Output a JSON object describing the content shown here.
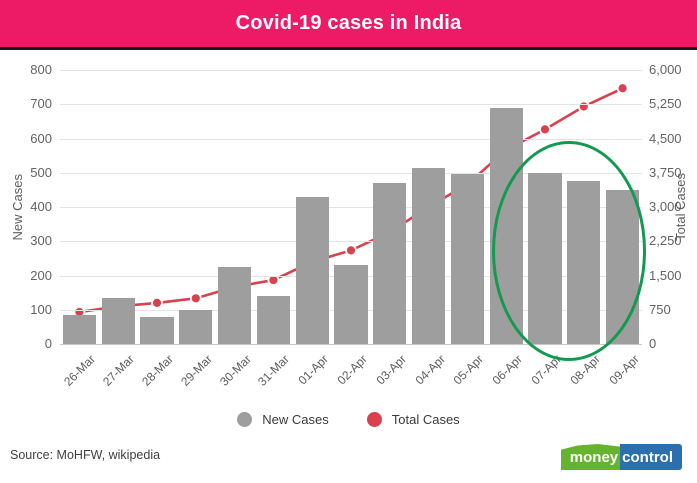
{
  "header": {
    "title": "Covid-19 cases in India",
    "bg_color": "#ED1A66",
    "text_color": "#ffffff"
  },
  "chart_data": {
    "type": "bar",
    "subtype": "bar-and-line-combo",
    "title": "Covid-19 cases in India",
    "categories": [
      "26-Mar",
      "27-Mar",
      "28-Mar",
      "29-Mar",
      "30-Mar",
      "31-Mar",
      "01-Apr",
      "02-Apr",
      "03-Apr",
      "04-Apr",
      "05-Apr",
      "06-Apr",
      "07-Apr",
      "08-Apr",
      "09-Apr"
    ],
    "series": [
      {
        "name": "New Cases",
        "type": "bar",
        "axis": "left",
        "color": "#9E9E9E",
        "values": [
          85,
          135,
          80,
          100,
          225,
          140,
          430,
          230,
          470,
          515,
          495,
          690,
          500,
          475,
          450
        ]
      },
      {
        "name": "Total Cases",
        "type": "line",
        "axis": "right",
        "color": "#D9414E",
        "marker_stroke": "#ffffff",
        "values": [
          700,
          825,
          900,
          1000,
          1250,
          1400,
          1800,
          2050,
          2450,
          3000,
          3500,
          4250,
          4700,
          5200,
          5600
        ]
      }
    ],
    "left_axis": {
      "label": "New Cases",
      "min": 0,
      "max": 800,
      "step": 100,
      "tick_labels": [
        "0",
        "100",
        "200",
        "300",
        "400",
        "500",
        "600",
        "700",
        "800"
      ]
    },
    "right_axis": {
      "label": "Total Cases",
      "min": 0,
      "max": 6000,
      "step": 750,
      "tick_labels": [
        "0",
        "750",
        "1,500",
        "2,250",
        "3,000",
        "3,750",
        "4,500",
        "5,250",
        "6,000"
      ]
    },
    "grid": true,
    "legend_position": "bottom",
    "annotation": {
      "shape": "ellipse",
      "color": "#149950",
      "highlights": [
        "07-Apr",
        "08-Apr",
        "09-Apr"
      ]
    }
  },
  "legend": {
    "items": [
      {
        "label": "New Cases",
        "color": "#9E9E9E"
      },
      {
        "label": "Total Cases",
        "color": "#D9414E"
      }
    ]
  },
  "footer": {
    "source": "Source: MoHFW, wikipedia",
    "logo": {
      "part1": "money",
      "part2": "control",
      "green": "#65B32E",
      "blue": "#2C6FAF"
    }
  }
}
